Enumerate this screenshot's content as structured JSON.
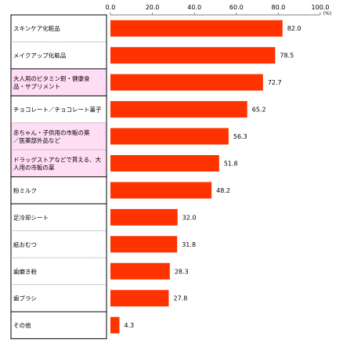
{
  "chart_data": {
    "type": "bar",
    "orientation": "horizontal",
    "unit": "(%)",
    "xlim": [
      0,
      100
    ],
    "ticks": [
      "0.0",
      "20.0",
      "40.0",
      "60.0",
      "80.0",
      "100.0"
    ],
    "categories": [
      [
        "スキンケア化粧品"
      ],
      [
        "メイクアップ化粧品"
      ],
      [
        "大人用のビタミン剤・健康食",
        "品・サプリメント"
      ],
      [
        "チョコレート／チョコレート菓子"
      ],
      [
        "赤ちゃん・子供用の市販の薬",
        "／医薬部外品など"
      ],
      [
        "ドラッグストアなどで買える、大",
        "人用の市販の薬"
      ],
      [
        "粉ミルク"
      ],
      [
        "足冷却シート"
      ],
      [
        "紙おむつ"
      ],
      [
        "歯磨き粉"
      ],
      [
        "歯ブラシ"
      ],
      [
        "その他"
      ]
    ],
    "values": [
      82.0,
      78.5,
      72.7,
      65.2,
      56.3,
      51.8,
      48.2,
      32.0,
      31.8,
      28.3,
      27.8,
      4.3
    ],
    "value_labels": [
      "82.0",
      "78.5",
      "72.7",
      "65.2",
      "56.3",
      "51.8",
      "48.2",
      "32.0",
      "31.8",
      "28.3",
      "27.8",
      "4.3"
    ],
    "highlighted_rows": [
      2,
      4,
      5
    ],
    "colors": {
      "bar": "#ff3300",
      "highlight_fill": "#ffddf5",
      "border": "#000000",
      "divider": "#999999",
      "axis": "#7f7f7f"
    }
  }
}
